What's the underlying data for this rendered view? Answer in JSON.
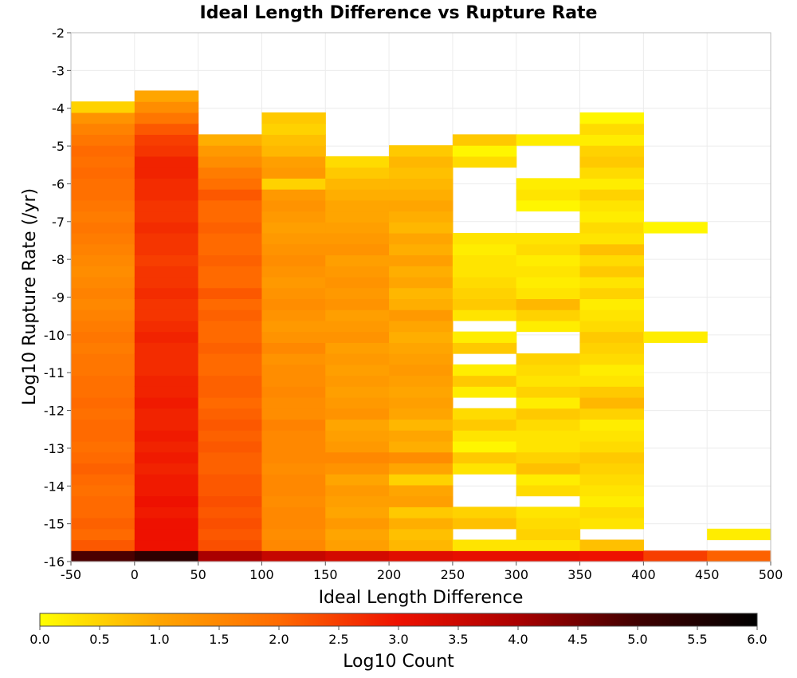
{
  "chart_data": {
    "type": "heatmap",
    "title": "Ideal Length Difference vs Rupture Rate",
    "xlabel": "Ideal Length Difference",
    "ylabel": "Log10 Rupture Rate (/yr)",
    "xlim": [
      -50,
      500
    ],
    "ylim": [
      -16,
      -2
    ],
    "x_ticks": [
      "-50",
      "0",
      "50",
      "100",
      "150",
      "200",
      "250",
      "300",
      "350",
      "400",
      "450",
      "500"
    ],
    "y_ticks": [
      "-2",
      "-3",
      "-4",
      "-5",
      "-6",
      "-7",
      "-8",
      "-9",
      "-10",
      "-11",
      "-12",
      "-13",
      "-14",
      "-15",
      "-16"
    ],
    "grid": true,
    "colorbar": {
      "label": "Log10 Count",
      "min": 0,
      "max": 6,
      "ticks": [
        "0.0",
        "0.5",
        "1.0",
        "1.5",
        "2.0",
        "2.5",
        "3.0",
        "3.5",
        "4.0",
        "4.5",
        "5.0",
        "5.5",
        "6.0"
      ],
      "colors": [
        "#ffff00",
        "#ffa500",
        "#ff6a00",
        "#ee1100",
        "#aa0000",
        "#400000",
        "#000000"
      ]
    },
    "x_bin_width": 50,
    "y_bin_height": 0.29,
    "y_bin_start": -16,
    "columns": [
      {
        "x_start": -50,
        "values": [
          4.9,
          2.2,
          2.0,
          2.1,
          2.0,
          2.0,
          1.9,
          2.0,
          2.1,
          2.0,
          1.9,
          2.0,
          2.0,
          1.9,
          2.0,
          1.9,
          1.9,
          1.8,
          1.8,
          1.7,
          1.8,
          1.7,
          1.6,
          1.5,
          1.6,
          1.5,
          1.4,
          1.5,
          1.6,
          1.7,
          1.8,
          1.7,
          1.8,
          1.9,
          1.9,
          2.0,
          1.9,
          2.0,
          1.8,
          1.6,
          1.3,
          0.5
        ]
      },
      {
        "x_start": 0,
        "values": [
          5.3,
          3.0,
          3.0,
          3.0,
          2.9,
          3.0,
          2.9,
          2.9,
          2.8,
          2.9,
          2.8,
          2.9,
          2.8,
          2.8,
          2.9,
          2.8,
          2.8,
          2.7,
          2.7,
          2.7,
          2.8,
          2.7,
          2.6,
          2.6,
          2.7,
          2.6,
          2.6,
          2.5,
          2.6,
          2.6,
          2.7,
          2.6,
          2.6,
          2.7,
          2.7,
          2.8,
          2.8,
          2.6,
          2.5,
          2.2,
          1.8,
          1.4,
          1.0
        ]
      },
      {
        "x_start": 50,
        "values": [
          4.0,
          2.3,
          2.2,
          2.3,
          2.2,
          2.3,
          2.2,
          2.2,
          2.1,
          2.1,
          2.2,
          2.1,
          2.2,
          2.1,
          2.0,
          2.1,
          2.1,
          2.0,
          2.0,
          2.1,
          2.0,
          2.0,
          2.1,
          2.0,
          2.2,
          2.0,
          2.0,
          2.1,
          2.0,
          2.0,
          2.1,
          2.0,
          2.0,
          2.2,
          1.9,
          1.7,
          1.4,
          1.2,
          0.9
        ]
      },
      {
        "x_start": 100,
        "values": [
          3.6,
          1.5,
          1.4,
          1.5,
          1.5,
          1.4,
          1.5,
          1.5,
          1.4,
          1.5,
          1.5,
          1.5,
          1.6,
          1.4,
          1.4,
          1.5,
          1.4,
          1.4,
          1.3,
          1.5,
          1.3,
          1.2,
          1.3,
          1.4,
          1.3,
          1.2,
          1.3,
          1.4,
          1.3,
          1.2,
          1.1,
          1.2,
          1.3,
          1.2,
          0.5,
          1.2,
          1.1,
          0.8,
          0.7,
          0.5,
          0.6
        ]
      },
      {
        "x_start": 150,
        "values": [
          3.4,
          1.1,
          1.0,
          1.2,
          1.0,
          1.1,
          1.2,
          1.0,
          1.3,
          1.5,
          1.2,
          1.1,
          1.0,
          1.3,
          1.2,
          1.1,
          1.2,
          1.1,
          1.2,
          1.1,
          1.3,
          1.2,
          1.1,
          1.3,
          1.2,
          1.3,
          1.2,
          1.1,
          1.3,
          1.2,
          1.1,
          1.0,
          1.0,
          0.9,
          0.8,
          0.6,
          0.4
        ]
      },
      {
        "x_start": 200,
        "values": [
          3.2,
          0.8,
          0.7,
          0.9,
          0.6,
          1.1,
          1.0,
          0.5,
          1.0,
          1.4,
          0.9,
          1.0,
          0.8,
          1.0,
          1.1,
          1.0,
          1.1,
          1.2,
          1.1,
          1.0,
          0.9,
          1.0,
          1.2,
          0.9,
          0.8,
          1.0,
          0.9,
          1.1,
          0.9,
          1.0,
          0.8,
          0.9,
          1.0,
          0.9,
          0.8,
          0.7,
          0.8,
          0.6
        ]
      },
      {
        "x_start": 250,
        "values": [
          3.1,
          0.3,
          null,
          0.7,
          0.5,
          null,
          null,
          null,
          0.3,
          0.6,
          0.1,
          0.3,
          0.6,
          0.4,
          null,
          0.2,
          0.6,
          0.2,
          null,
          0.6,
          0.2,
          null,
          0.3,
          0.6,
          0.5,
          0.4,
          0.3,
          0.3,
          0.2,
          0.3,
          null,
          null,
          null,
          null,
          null,
          null,
          0.4,
          0.1,
          0.6
        ]
      },
      {
        "x_start": 300,
        "values": [
          3.1,
          0.3,
          0.5,
          0.4,
          0.3,
          null,
          0.4,
          0.2,
          0.7,
          0.5,
          0.3,
          0.3,
          0.4,
          0.6,
          0.2,
          0.5,
          0.3,
          0.4,
          0.5,
          null,
          null,
          0.2,
          0.5,
          0.8,
          0.3,
          0.2,
          0.3,
          0.2,
          0.4,
          0.3,
          null,
          null,
          0.1,
          0.3,
          0.2,
          null,
          null,
          null,
          0.2
        ]
      },
      {
        "x_start": 350,
        "values": [
          3.0,
          0.7,
          null,
          0.3,
          0.4,
          0.2,
          0.3,
          0.4,
          0.5,
          0.6,
          0.4,
          0.3,
          0.2,
          0.5,
          0.8,
          0.6,
          0.3,
          0.2,
          0.4,
          0.5,
          0.6,
          0.4,
          0.3,
          0.2,
          0.5,
          0.3,
          0.6,
          0.4,
          0.7,
          0.3,
          0.4,
          0.2,
          0.3,
          0.5,
          0.2,
          0.4,
          0.6,
          0.5,
          0.2,
          0.4,
          0.1
        ]
      },
      {
        "x_start": 400,
        "values": [
          2.5,
          null,
          null,
          null,
          null,
          null,
          null,
          null,
          null,
          null,
          null,
          null,
          null,
          null,
          null,
          null,
          null,
          null,
          null,
          null,
          0.2,
          null,
          null,
          null,
          null,
          null,
          null,
          null,
          null,
          null,
          0.1
        ]
      },
      {
        "x_start": 450,
        "values": [
          2.1,
          null,
          0.2
        ]
      }
    ]
  }
}
